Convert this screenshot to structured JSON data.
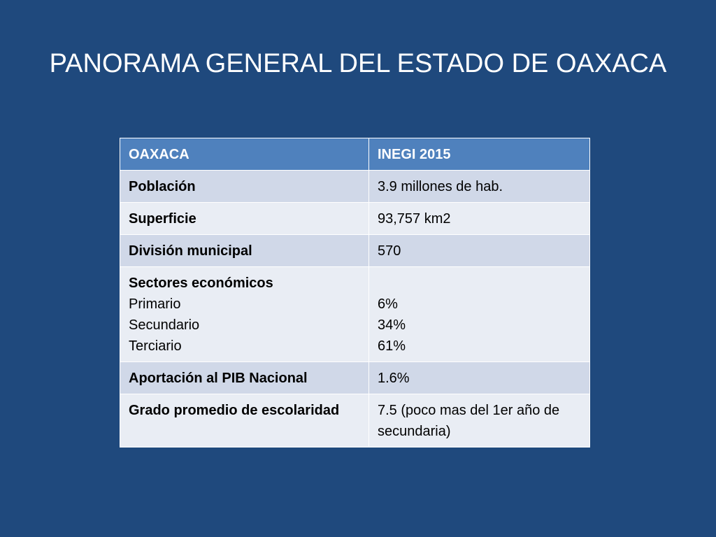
{
  "title": "PANORAMA GENERAL DEL ESTADO DE OAXACA",
  "table": {
    "headers": [
      "OAXACA",
      "INEGI 2015"
    ],
    "rows": [
      {
        "label": "Población",
        "value": "3.9 millones de hab."
      },
      {
        "label": "Superficie",
        "value": "93,757 km2"
      },
      {
        "label": "División municipal",
        "value": "570"
      },
      {
        "label": "Sectores económicos",
        "sublabels": [
          "Primario",
          "Secundario",
          "Terciario"
        ],
        "subvalues": [
          "6%",
          "34%",
          "61%"
        ]
      },
      {
        "label": "Aportación al PIB Nacional",
        "value": "1.6%"
      },
      {
        "label": "Grado promedio de escolaridad",
        "value": "7.5 (poco mas del 1er año de secundaria)"
      }
    ]
  },
  "colors": {
    "background": "#1f497d",
    "header": "#4f81bd",
    "row_dark": "#d0d8e8",
    "row_light": "#e9edf4"
  }
}
